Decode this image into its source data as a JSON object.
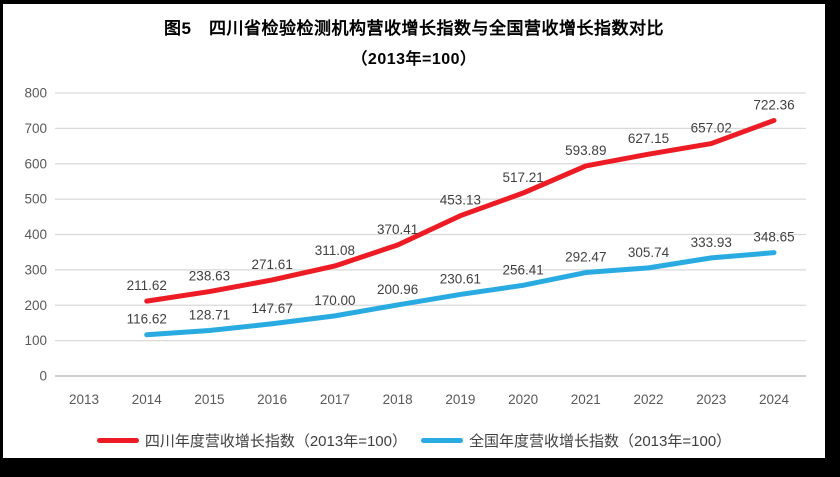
{
  "page": {
    "background": "#000000",
    "panel_background": "#FFFFFF"
  },
  "chart": {
    "title_line1": "图5　四川省检验检测机构营收增长指数与全国营收增长指数对比",
    "title_line2": "（2013年=100）"
  },
  "chart_data": {
    "type": "line",
    "title": "图5 四川省检验检测机构营收增长指数与全国营收增长指数对比（2013年=100）",
    "x": [
      2013,
      2014,
      2015,
      2016,
      2017,
      2018,
      2019,
      2020,
      2021,
      2022,
      2023,
      2024
    ],
    "series": [
      {
        "name": "四川年度营收增长指数（2013年=100）",
        "color": "#ED1C24",
        "values": [
          null,
          211.62,
          238.63,
          271.61,
          311.08,
          370.41,
          453.13,
          517.21,
          593.89,
          627.15,
          657.02,
          722.36
        ]
      },
      {
        "name": "全国年度营收增长指数（2013年=100）",
        "color": "#29ABE2",
        "values": [
          null,
          116.62,
          128.71,
          147.67,
          170.0,
          200.96,
          230.61,
          256.41,
          292.47,
          305.74,
          333.93,
          348.65
        ]
      }
    ],
    "ylim": [
      0,
      800
    ],
    "ytick_step": 100,
    "yticks": [
      0,
      100,
      200,
      300,
      400,
      500,
      600,
      700,
      800
    ],
    "grid": true,
    "legend_position": "bottom",
    "data_labels": true,
    "data_label_decimals": 2,
    "colors": {
      "gridline": "#D9D9D9",
      "axis_line": "#BFBFBF",
      "tick_label": "#595959",
      "data_label": "#404040"
    }
  }
}
